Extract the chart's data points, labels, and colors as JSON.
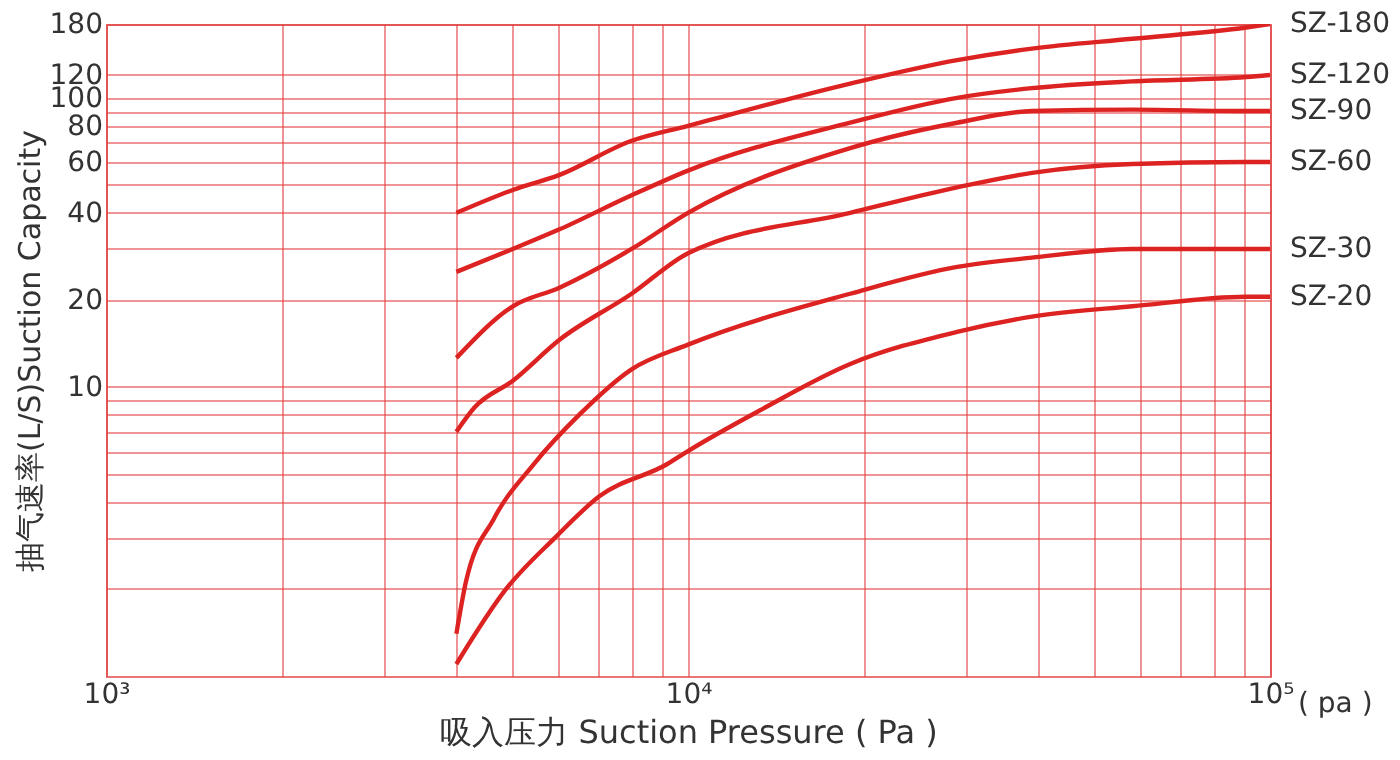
{
  "chart_data": {
    "type": "line",
    "xlabel": "吸入压力 Suction Pressure ( Pa )",
    "ylabel": "抽气速率(L/S)Suction Capacity",
    "log": "xy",
    "grid": true,
    "xlim": [
      1000,
      100000
    ],
    "xticks": [
      {
        "value": 1000,
        "label": "10³"
      },
      {
        "value": 2000,
        "label": null
      },
      {
        "value": 3000,
        "label": null
      },
      {
        "value": 4000,
        "label": null
      },
      {
        "value": 5000,
        "label": null
      },
      {
        "value": 6000,
        "label": null
      },
      {
        "value": 7000,
        "label": null
      },
      {
        "value": 8000,
        "label": null
      },
      {
        "value": 9000,
        "label": null
      },
      {
        "value": 10000,
        "label": "10⁴"
      },
      {
        "value": 20000,
        "label": null
      },
      {
        "value": 30000,
        "label": null
      },
      {
        "value": 40000,
        "label": null
      },
      {
        "value": 50000,
        "label": null
      },
      {
        "value": 60000,
        "label": null
      },
      {
        "value": 70000,
        "label": null
      },
      {
        "value": 80000,
        "label": null
      },
      {
        "value": 90000,
        "label": null
      },
      {
        "value": 100000,
        "label": "10⁵"
      }
    ],
    "ylim": [
      1,
      180
    ],
    "yticks": [
      {
        "value": 2,
        "label": null
      },
      {
        "value": 3,
        "label": null
      },
      {
        "value": 4,
        "label": null
      },
      {
        "value": 5,
        "label": null
      },
      {
        "value": 6,
        "label": null
      },
      {
        "value": 7,
        "label": null
      },
      {
        "value": 8,
        "label": null
      },
      {
        "value": 9,
        "label": null
      },
      10,
      20,
      {
        "value": 30,
        "label": null
      },
      40,
      {
        "value": 50,
        "label": null
      },
      60,
      {
        "value": 70,
        "label": null
      },
      80,
      {
        "value": 90,
        "label": null
      },
      100,
      120,
      180
    ],
    "annotations": [
      "( pa )"
    ],
    "series": [
      {
        "name": "SZ-180",
        "color": "#dd2222",
        "x": [
          4000,
          5000,
          6000,
          8000,
          10000,
          19000,
          29000,
          39000,
          58000,
          91000,
          100000
        ],
        "values": [
          40,
          48,
          54,
          71,
          80,
          112,
          135,
          148,
          160,
          175,
          180
        ]
      },
      {
        "name": "SZ-120",
        "color": "#dd2222",
        "x": [
          4000,
          5000,
          6000,
          8000,
          10000,
          19000,
          29000,
          39000,
          58000,
          91000,
          100000
        ],
        "values": [
          25,
          30,
          35,
          46,
          56,
          82,
          100,
          108,
          114,
          118,
          120
        ]
      },
      {
        "name": "SZ-90",
        "color": "#dd2222",
        "x": [
          4000,
          5000,
          6000,
          8000,
          10000,
          19000,
          29000,
          39000,
          58000,
          91000,
          100000
        ],
        "values": [
          12.6,
          19,
          22,
          30,
          40,
          67,
          82,
          90,
          91,
          90,
          90
        ]
      },
      {
        "name": "SZ-60",
        "color": "#dd2222",
        "x": [
          4000,
          4300,
          5000,
          6000,
          8000,
          10000,
          19000,
          29000,
          39000,
          58000,
          91000,
          100000
        ],
        "values": [
          7,
          8.5,
          10.5,
          14.5,
          21,
          29,
          40,
          49,
          55,
          59,
          60,
          60
        ]
      },
      {
        "name": "SZ-30",
        "color": "#dd2222",
        "x": [
          4000,
          4150,
          4640,
          5430,
          6500,
          8000,
          10000,
          19000,
          29000,
          39000,
          58000,
          91000,
          100000
        ],
        "values": [
          1.4,
          2.1,
          3.5,
          5.4,
          8,
          11.5,
          14,
          21,
          26,
          28,
          30,
          30,
          30
        ]
      },
      {
        "name": "SZ-20",
        "color": "#dd2222",
        "x": [
          4000,
          4870,
          5900,
          7060,
          9200,
          10000,
          13300,
          19000,
          29000,
          39000,
          58000,
          91000,
          100000
        ],
        "values": [
          1.1,
          2,
          3,
          4.2,
          5.4,
          6,
          8.3,
          12,
          15.5,
          17.5,
          19,
          20.5,
          20.5
        ]
      }
    ]
  }
}
